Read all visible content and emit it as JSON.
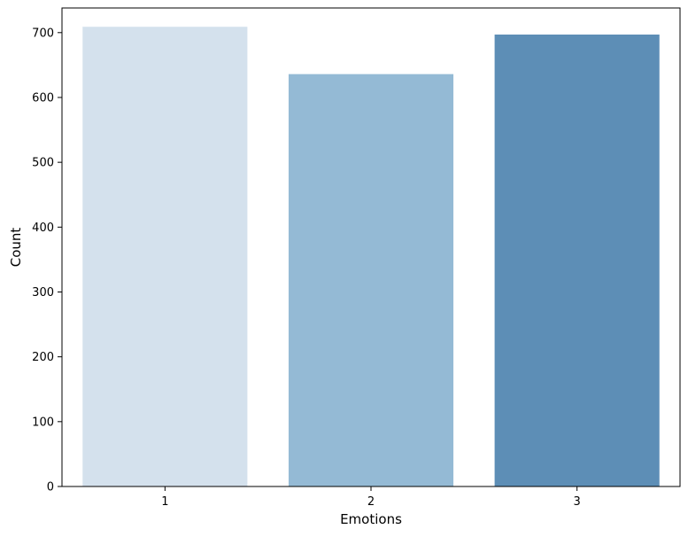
{
  "chart_data": {
    "type": "bar",
    "title": "",
    "xlabel": "Emotions",
    "ylabel": "Count",
    "categories": [
      "1",
      "2",
      "3"
    ],
    "values": [
      709,
      636,
      697
    ],
    "bar_colors": [
      "#d4e1ed",
      "#94bad5",
      "#5d8eb6"
    ],
    "ylim": [
      0,
      738
    ],
    "yticks": [
      0,
      100,
      200,
      300,
      400,
      500,
      600,
      700
    ],
    "grid": false,
    "legend": false
  }
}
